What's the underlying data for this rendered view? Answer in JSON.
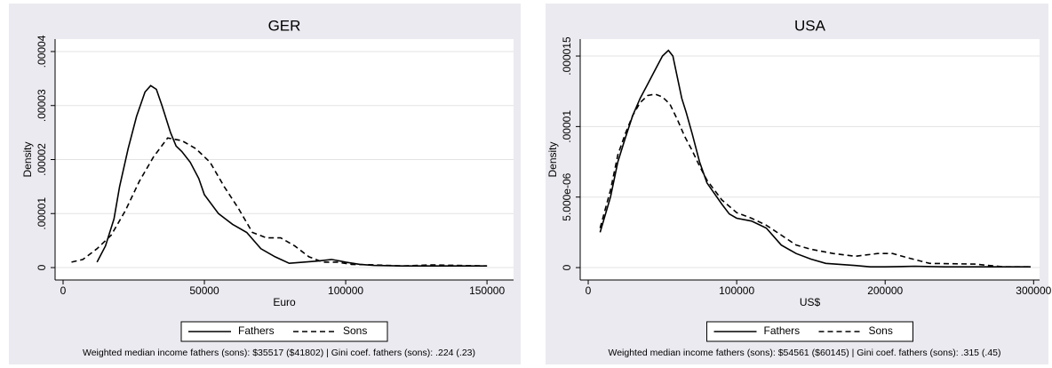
{
  "chart_data": [
    {
      "type": "line",
      "title": "GER",
      "y_label": "Density",
      "x_label": "Euro",
      "note": "Weighted median income fathers (sons): $35517 ($41802) | Gini coef. fathers (sons): .224 (.23)",
      "xlim": [
        -2830,
        159400
      ],
      "ylim": [
        -2.3e-06,
        4.23e-05
      ],
      "xticks": [
        0,
        50000,
        100000,
        150000
      ],
      "yticks": [
        0,
        {
          "value": 1e-05,
          "label": ".00001"
        },
        {
          "value": 2e-05,
          "label": ".00002"
        },
        {
          "value": 3e-05,
          "label": ".00003"
        },
        {
          "value": 4e-05,
          "label": ".00004"
        }
      ],
      "grid": true,
      "legend": "bottom",
      "series": [
        {
          "name": "Fathers",
          "color": "#000000",
          "dash": false,
          "x": [
            12000,
            15000,
            18000,
            20000,
            23000,
            26000,
            29000,
            31000,
            33000,
            35000,
            38000,
            40000,
            42000,
            45000,
            48000,
            50000,
            55000,
            60000,
            65000,
            70000,
            75000,
            80000,
            85000,
            90000,
            95000,
            100000,
            105000,
            110000,
            120000,
            130000,
            150000
          ],
          "values": [
            1e-06,
            4e-06,
            9e-06,
            1.5e-05,
            2.2e-05,
            2.8e-05,
            3.25e-05,
            3.37e-05,
            3.3e-05,
            3e-05,
            2.5e-05,
            2.25e-05,
            2.15e-05,
            1.95e-05,
            1.65e-05,
            1.35e-05,
            1e-05,
            8e-06,
            6.5e-06,
            3.5e-06,
            2e-06,
            8e-07,
            1e-06,
            1.2e-06,
            1.5e-06,
            1e-06,
            6e-07,
            4e-07,
            3e-07,
            3e-07,
            3e-07
          ]
        },
        {
          "name": "Sons",
          "color": "#000000",
          "dash": true,
          "x": [
            3000,
            7000,
            12000,
            17000,
            22000,
            27000,
            32000,
            37000,
            42000,
            47000,
            52000,
            57000,
            62000,
            67000,
            72000,
            77000,
            82000,
            87000,
            92000,
            97000,
            102000,
            110000,
            120000,
            130000,
            150000
          ],
          "values": [
            1e-06,
            1.5e-06,
            3.5e-06,
            6e-06,
            1.05e-05,
            1.6e-05,
            2.05e-05,
            2.4e-05,
            2.35e-05,
            2.2e-05,
            1.95e-05,
            1.5e-05,
            1.1e-05,
            6.5e-06,
            5.5e-06,
            5.5e-06,
            4e-06,
            2e-06,
            1e-06,
            1e-06,
            6e-07,
            5e-07,
            3e-07,
            5e-07,
            3e-07
          ]
        }
      ]
    },
    {
      "type": "line",
      "title": "USA",
      "y_label": "Density",
      "x_label": "US$",
      "note": "Weighted median income fathers (sons): $54561 ($60145) | Gini coef. fathers (sons): .315 (.45)",
      "xlim": [
        -5400,
        304000
      ],
      "ylim": [
        -8.8e-07,
        1.62e-05
      ],
      "xticks": [
        0,
        100000,
        200000,
        300000
      ],
      "yticks": [
        0,
        {
          "value": 5e-06,
          "label": "5.000e-06"
        },
        {
          "value": 1e-05,
          "label": ".00001"
        },
        {
          "value": 1.5e-05,
          "label": ".000015"
        }
      ],
      "grid": true,
      "legend": "bottom",
      "series": [
        {
          "name": "Fathers",
          "color": "#000000",
          "dash": false,
          "x": [
            8000,
            15000,
            20000,
            25000,
            30000,
            35000,
            40000,
            45000,
            50000,
            54000,
            57000,
            60000,
            63000,
            66000,
            70000,
            75000,
            80000,
            90000,
            95000,
            100000,
            110000,
            120000,
            130000,
            140000,
            150000,
            160000,
            180000,
            190000,
            200000,
            220000,
            240000,
            260000,
            280000,
            298000
          ],
          "values": [
            2.5e-06,
            5e-06,
            7.5e-06,
            9.2e-06,
            1.08e-05,
            1.2e-05,
            1.3e-05,
            1.4e-05,
            1.5e-05,
            1.54e-05,
            1.5e-05,
            1.35e-05,
            1.2e-05,
            1.1e-05,
            9.5e-06,
            7.5e-06,
            6e-06,
            4.5e-06,
            3.8e-06,
            3.5e-06,
            3.3e-06,
            2.8e-06,
            1.6e-06,
            1e-06,
            6e-07,
            3e-07,
            1.5e-07,
            5e-08,
            5e-08,
            1e-07,
            5e-08,
            5e-08,
            5e-08,
            5e-08
          ]
        },
        {
          "name": "Sons",
          "color": "#000000",
          "dash": true,
          "x": [
            8000,
            15000,
            20000,
            25000,
            30000,
            35000,
            40000,
            45000,
            50000,
            55000,
            60000,
            65000,
            70000,
            75000,
            80000,
            90000,
            100000,
            110000,
            120000,
            130000,
            140000,
            150000,
            165000,
            180000,
            195000,
            205000,
            215000,
            230000,
            260000,
            280000,
            298000
          ],
          "values": [
            2.8e-06,
            5.5e-06,
            8e-06,
            9.5e-06,
            1.08e-05,
            1.17e-05,
            1.22e-05,
            1.23e-05,
            1.21e-05,
            1.16e-05,
            1.05e-05,
            9.3e-06,
            8.3e-06,
            7.2e-06,
            6.2e-06,
            4.8e-06,
            3.9e-06,
            3.5e-06,
            3e-06,
            2.3e-06,
            1.6e-06,
            1.3e-06,
            1e-06,
            8e-07,
            1e-06,
            1e-06,
            7e-07,
            3e-07,
            2.5e-07,
            5e-08,
            5e-08
          ]
        }
      ]
    }
  ]
}
